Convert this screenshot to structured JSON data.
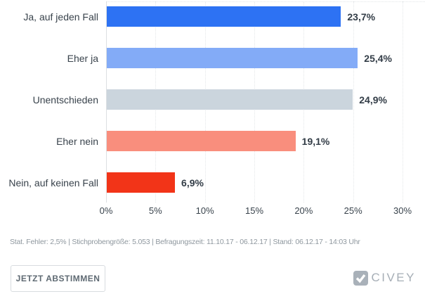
{
  "chart_data": {
    "type": "bar",
    "orientation": "horizontal",
    "categories": [
      "Ja, auf jeden Fall",
      "Eher ja",
      "Unentschieden",
      "Eher nein",
      "Nein, auf keinen Fall"
    ],
    "values": [
      23.7,
      25.4,
      24.9,
      19.1,
      6.9
    ],
    "value_labels": [
      "23,7%",
      "25,4%",
      "24,9%",
      "19,1%",
      "6,9%"
    ],
    "bar_colors": [
      "#2d72f3",
      "#83abf7",
      "#cbd5dd",
      "#f98e7d",
      "#f23418"
    ],
    "xlim": [
      0,
      30
    ],
    "x_tick_labels": [
      "0%",
      "5%",
      "10%",
      "15%",
      "20%",
      "25%",
      "30%"
    ],
    "grid": "vertical-dotted",
    "legend": "none",
    "title": ""
  },
  "footer": {
    "stats_line": "Stat. Fehler: 2,5% | Stichprobengröße: 5.053 | Befragungszeit: 11.10.17 - 06.12.17 | Stand: 06.12.17 - 14:03 Uhr",
    "vote_button_label": "JETZT ABSTIMMEN",
    "logo_text": "CIVEY"
  },
  "colors": {
    "accent_blue": "#2d72f3",
    "accent_red": "#f23418",
    "grid": "#e4e7e9",
    "text_dark": "#39434c",
    "text_muted": "#8f989f",
    "logo_gray": "#a9b1b9"
  }
}
